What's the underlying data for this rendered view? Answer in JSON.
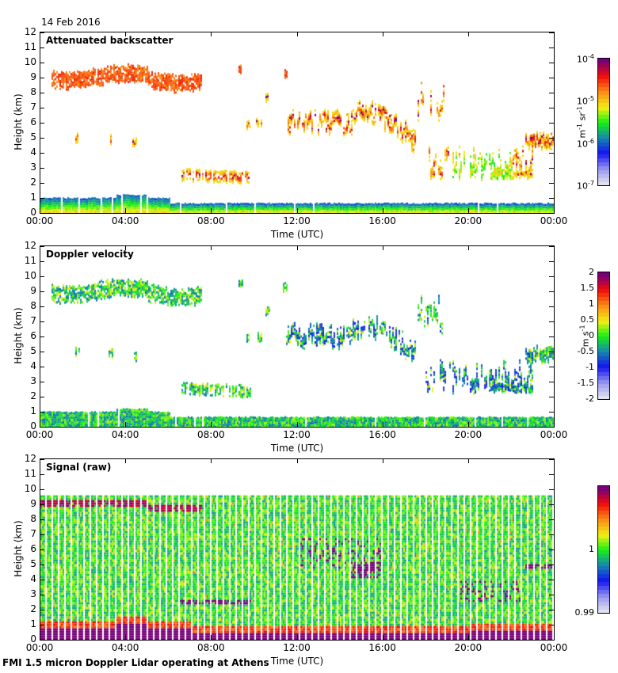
{
  "date": "14 Feb 2016",
  "footer": "FMI 1.5 micron Doppler Lidar operating at Athens",
  "chart_data": [
    {
      "type": "heatmap",
      "title": "Attenuated backscatter",
      "xlabel": "Time (UTC)",
      "ylabel": "Height (km)",
      "xlim": [
        "00:00",
        "24:00"
      ],
      "ylim": [
        0,
        12
      ],
      "x_ticks": [
        "00:00",
        "04:00",
        "08:00",
        "12:00",
        "16:00",
        "20:00",
        "00:00"
      ],
      "y_ticks": [
        "0",
        "1",
        "2",
        "3",
        "4",
        "5",
        "6",
        "7",
        "8",
        "9",
        "10",
        "11",
        "12"
      ],
      "colorbar": {
        "scale": "log",
        "range": [
          1e-07,
          0.0001
        ],
        "ticks": [
          "10-7",
          "10-6",
          "10-5",
          "10-4"
        ],
        "tick_display": [
          [
            "10",
            "-7"
          ],
          [
            "10",
            "-6"
          ],
          [
            "10",
            "-5"
          ],
          [
            "10",
            "-4"
          ]
        ],
        "unit": [
          "m",
          "-1",
          " sr",
          "-1"
        ],
        "colormap": "rainbow (light gray-blue-green-yellow-red-purple)"
      },
      "features": [
        {
          "name": "boundary layer",
          "time_h": [
            0,
            24
          ],
          "height_km": [
            0,
            1.0
          ],
          "value": "1e-6 to 5e-6"
        },
        {
          "name": "high cirrus",
          "time_h": [
            0.5,
            7.5
          ],
          "height_km": [
            8.5,
            9.5
          ],
          "value": "3e-5 to 1e-4"
        },
        {
          "name": "mid-level layer",
          "time_h": [
            6.5,
            10
          ],
          "height_km": [
            2.4,
            2.8
          ],
          "value": "1e-5 to 1e-4"
        },
        {
          "name": "mid cloud system",
          "time_h": [
            11.5,
            17.5
          ],
          "height_km": [
            4.2,
            7.0
          ],
          "value": "1e-5 to 1e-4"
        },
        {
          "name": "evening clouds",
          "time_h": [
            17.5,
            24
          ],
          "height_km": [
            2.3,
            6.3
          ],
          "value": "3e-6 to 1e-4"
        }
      ]
    },
    {
      "type": "heatmap",
      "title": "Doppler velocity",
      "xlabel": "Time (UTC)",
      "ylabel": "Height (km)",
      "xlim": [
        "00:00",
        "24:00"
      ],
      "ylim": [
        0,
        12
      ],
      "x_ticks": [
        "00:00",
        "04:00",
        "08:00",
        "12:00",
        "16:00",
        "20:00",
        "00:00"
      ],
      "y_ticks": [
        "0",
        "1",
        "2",
        "3",
        "4",
        "5",
        "6",
        "7",
        "8",
        "9",
        "10",
        "11",
        "12"
      ],
      "colorbar": {
        "scale": "linear",
        "range": [
          -2,
          2
        ],
        "ticks": [
          "-2",
          "-1.5",
          "-1",
          "-0.5",
          "0",
          "0.5",
          "1",
          "1.5",
          "2"
        ],
        "unit": [
          "m s",
          "-1"
        ],
        "colormap": "rainbow (light gray-blue-green-yellow-red-purple)"
      },
      "features": [
        {
          "name": "boundary layer",
          "time_h": [
            0,
            24
          ],
          "height_km": [
            0,
            1.0
          ],
          "value": "-0.2 to 0.5 m/s"
        },
        {
          "name": "high cirrus",
          "time_h": [
            0.5,
            7.5
          ],
          "height_km": [
            8.5,
            9.5
          ],
          "value": "-0.5 to 0.5 m/s"
        },
        {
          "name": "mid cloud system",
          "time_h": [
            11.5,
            17.5
          ],
          "height_km": [
            4.2,
            7.0
          ],
          "value": "-1.5 to 0.3 m/s"
        },
        {
          "name": "evening clouds",
          "time_h": [
            17.5,
            24
          ],
          "height_km": [
            2.3,
            6.3
          ],
          "value": "-1.5 to 0.5 m/s"
        }
      ]
    },
    {
      "type": "heatmap",
      "title": "Signal (raw)",
      "xlabel": "Time (UTC)",
      "ylabel": "Height (km)",
      "xlim": [
        "00:00",
        "24:00"
      ],
      "ylim": [
        0,
        12
      ],
      "x_ticks": [
        "00:00",
        "04:00",
        "08:00",
        "12:00",
        "16:00",
        "20:00",
        "00:00"
      ],
      "y_ticks": [
        "0",
        "1",
        "2",
        "3",
        "4",
        "5",
        "6",
        "7",
        "8",
        "9",
        "10",
        "11",
        "12"
      ],
      "data_top_km": 9.6,
      "colorbar": {
        "scale": "linear",
        "range": [
          0.99,
          1.01
        ],
        "ticks": [
          "0.99",
          "1"
        ],
        "unit": [],
        "colormap": "rainbow (light gray-blue-green-yellow-red-purple)"
      },
      "features": [
        {
          "name": "near-surface strong signal",
          "time_h": [
            0,
            24
          ],
          "height_km": [
            0,
            1.0
          ],
          "value": ">=1.01"
        },
        {
          "name": "background noise",
          "time_h": [
            0,
            24
          ],
          "height_km": [
            1.0,
            9.6
          ],
          "value": "~1.0"
        }
      ]
    }
  ]
}
